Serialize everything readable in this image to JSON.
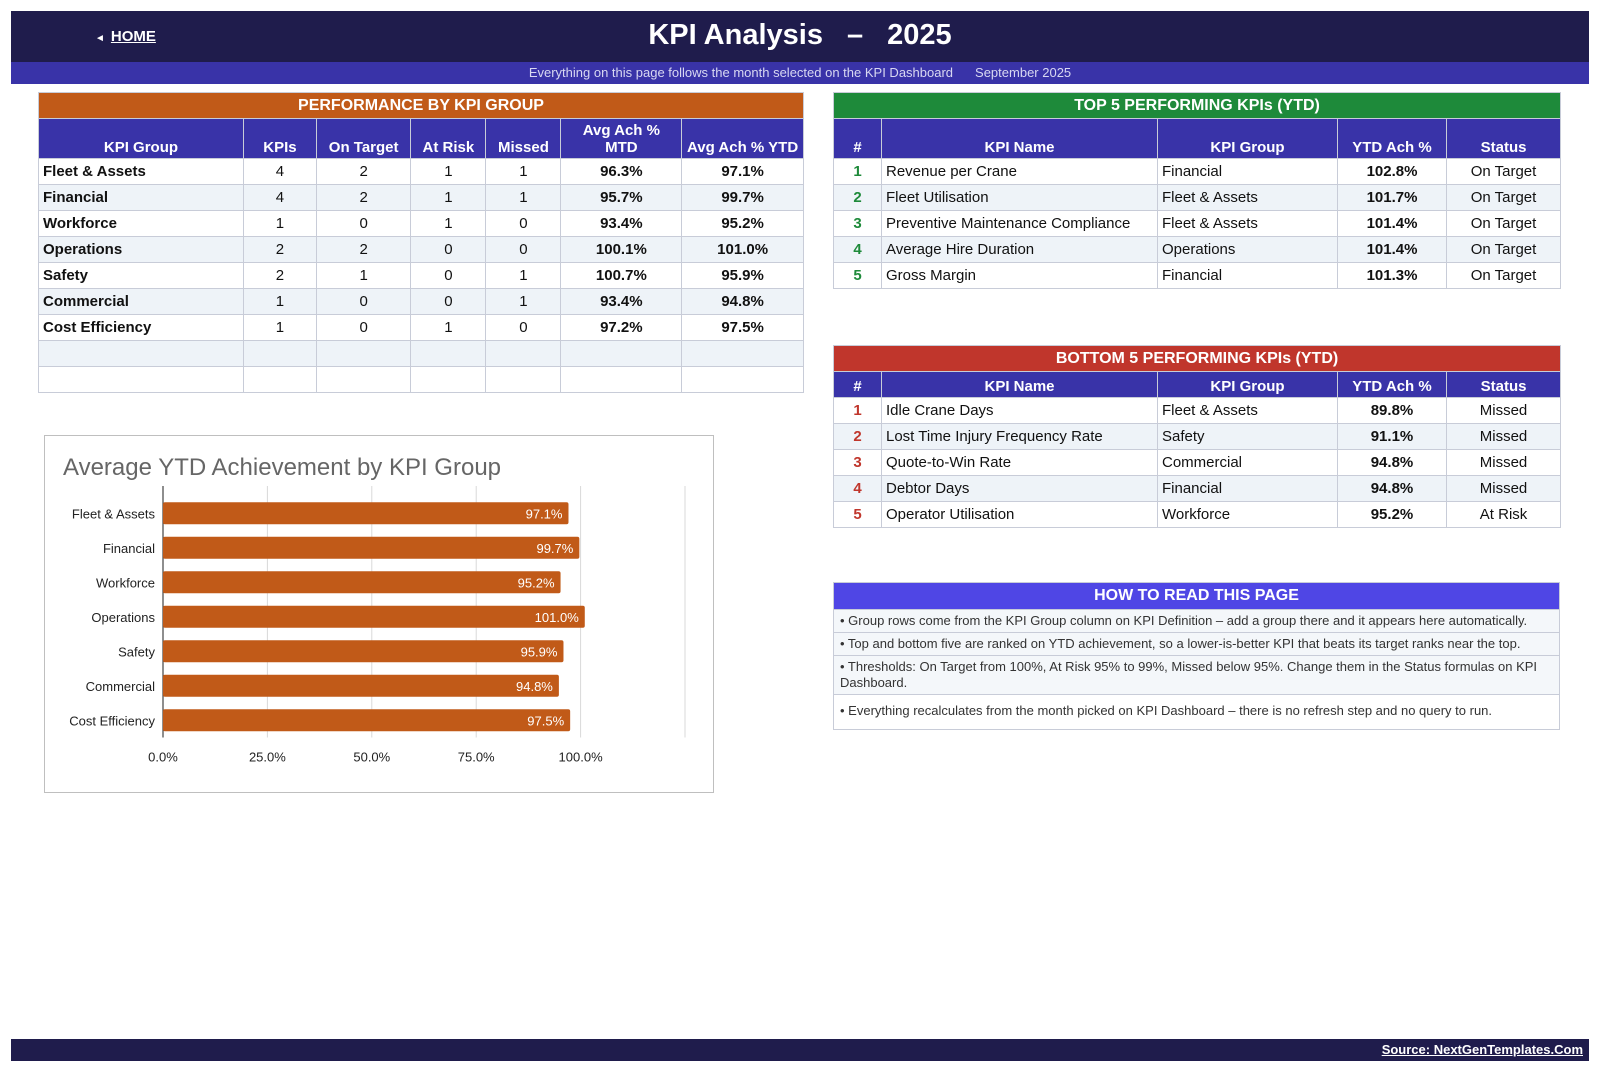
{
  "header": {
    "home_label": "HOME",
    "title": "KPI Analysis",
    "dash": "–",
    "year": "2025",
    "subtitle": "Everything on this page follows the month selected on the KPI Dashboard",
    "month": "September 2025"
  },
  "perf": {
    "banner": "PERFORMANCE BY KPI GROUP",
    "banner_color": "#c15a18",
    "columns": [
      "KPI Group",
      "KPIs",
      "On Target",
      "At Risk",
      "Missed",
      "Avg Ach % MTD",
      "Avg Ach % YTD"
    ],
    "rows": [
      [
        "Fleet & Assets",
        "4",
        "2",
        "1",
        "1",
        "96.3%",
        "97.1%"
      ],
      [
        "Financial",
        "4",
        "2",
        "1",
        "1",
        "95.7%",
        "99.7%"
      ],
      [
        "Workforce",
        "1",
        "0",
        "1",
        "0",
        "93.4%",
        "95.2%"
      ],
      [
        "Operations",
        "2",
        "2",
        "0",
        "0",
        "100.1%",
        "101.0%"
      ],
      [
        "Safety",
        "2",
        "1",
        "0",
        "1",
        "100.7%",
        "95.9%"
      ],
      [
        "Commercial",
        "1",
        "0",
        "0",
        "1",
        "93.4%",
        "94.8%"
      ],
      [
        "Cost Efficiency",
        "1",
        "0",
        "1",
        "0",
        "97.2%",
        "97.5%"
      ]
    ],
    "empty_rows": 2
  },
  "top5": {
    "banner": "TOP 5 PERFORMING KPIs  (YTD)",
    "banner_color": "#1e8a3a",
    "columns": [
      "#",
      "KPI Name",
      "KPI Group",
      "YTD Ach %",
      "Status"
    ],
    "rows": [
      [
        "1",
        "Revenue per Crane",
        "Financial",
        "102.8%",
        "On Target"
      ],
      [
        "2",
        "Fleet Utilisation",
        "Fleet & Assets",
        "101.7%",
        "On Target"
      ],
      [
        "3",
        "Preventive Maintenance Compliance",
        "Fleet & Assets",
        "101.4%",
        "On Target"
      ],
      [
        "4",
        "Average Hire Duration",
        "Operations",
        "101.4%",
        "On Target"
      ],
      [
        "5",
        "Gross Margin",
        "Financial",
        "101.3%",
        "On Target"
      ]
    ]
  },
  "bottom5": {
    "banner": "BOTTOM 5 PERFORMING KPIs  (YTD)",
    "banner_color": "#c0362c",
    "columns": [
      "#",
      "KPI Name",
      "KPI Group",
      "YTD Ach %",
      "Status"
    ],
    "rows": [
      [
        "1",
        "Idle Crane Days",
        "Fleet & Assets",
        "89.8%",
        "Missed"
      ],
      [
        "2",
        "Lost Time Injury Frequency Rate",
        "Safety",
        "91.1%",
        "Missed"
      ],
      [
        "3",
        "Quote-to-Win Rate",
        "Commercial",
        "94.8%",
        "Missed"
      ],
      [
        "4",
        "Debtor Days",
        "Financial",
        "94.8%",
        "Missed"
      ],
      [
        "5",
        "Operator Utilisation",
        "Workforce",
        "95.2%",
        "At Risk"
      ]
    ]
  },
  "howto": {
    "title": "HOW TO READ THIS PAGE",
    "items": [
      "•  Group rows come from the KPI Group column on KPI Definition – add a group there and it appears here automatically.",
      "•  Top and bottom five are ranked on YTD achievement, so a lower-is-better KPI that beats its target ranks near the top.",
      "•  Thresholds: On Target from 100%, At Risk 95% to 99%, Missed below 95%. Change them in the Status formulas on KPI Dashboard.",
      "•  Everything recalculates from the month picked on KPI Dashboard – there is no refresh step and no query to run."
    ]
  },
  "chart_data": {
    "type": "bar",
    "orientation": "horizontal",
    "title": "Average YTD Achievement by KPI Group",
    "categories": [
      "Fleet & Assets",
      "Financial",
      "Workforce",
      "Operations",
      "Safety",
      "Commercial",
      "Cost Efficiency"
    ],
    "values": [
      97.1,
      99.7,
      95.2,
      101.0,
      95.9,
      94.8,
      97.5
    ],
    "value_labels": [
      "97.1%",
      "99.7%",
      "95.2%",
      "101.0%",
      "95.9%",
      "94.8%",
      "97.5%"
    ],
    "x_ticks": [
      "0.0%",
      "25.0%",
      "50.0%",
      "75.0%",
      "100.0%"
    ],
    "x_tick_values": [
      0,
      25,
      50,
      75,
      100
    ],
    "xlim": [
      0,
      125
    ],
    "bar_color": "#c15a18",
    "grid": true,
    "legend": "none"
  },
  "footer": {
    "source": "Source: NextGenTemplates.Com"
  }
}
